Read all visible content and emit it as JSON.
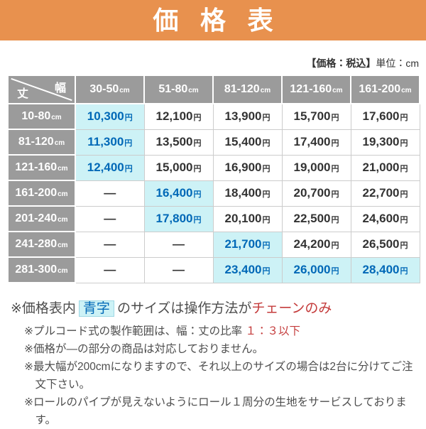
{
  "title": "価格表",
  "meta": {
    "tax_note": "【価格：税込】",
    "unit_note": "単位：cm"
  },
  "colors": {
    "banner": "#E8914E",
    "header_bg": "#9B9B9B",
    "cell_border": "#CCCCCC",
    "highlight_bg": "#CDF2F6",
    "highlight_text": "#0068B7",
    "emphasis_red": "#C43B3B",
    "price_text": "#333333",
    "note_text": "#4D4D4D"
  },
  "table": {
    "corner": {
      "width_label": "幅",
      "height_label": "丈"
    },
    "dash": "—",
    "price_unit": "円",
    "columns": [
      {
        "range": "30-50",
        "unit": "cm"
      },
      {
        "range": "51-80",
        "unit": "cm"
      },
      {
        "range": "81-120",
        "unit": "cm"
      },
      {
        "range": "121-160",
        "unit": "cm"
      },
      {
        "range": "161-200",
        "unit": "cm"
      }
    ],
    "row_headers": [
      {
        "range": "10-80",
        "unit": "cm"
      },
      {
        "range": "81-120",
        "unit": "cm"
      },
      {
        "range": "121-160",
        "unit": "cm"
      },
      {
        "range": "161-200",
        "unit": "cm"
      },
      {
        "range": "201-240",
        "unit": "cm"
      },
      {
        "range": "241-280",
        "unit": "cm"
      },
      {
        "range": "281-300",
        "unit": "cm"
      }
    ],
    "rows": [
      [
        {
          "value": "10,300",
          "highlight": true
        },
        {
          "value": "12,100",
          "highlight": false
        },
        {
          "value": "13,900",
          "highlight": false
        },
        {
          "value": "15,700",
          "highlight": false
        },
        {
          "value": "17,600",
          "highlight": false
        }
      ],
      [
        {
          "value": "11,300",
          "highlight": true
        },
        {
          "value": "13,500",
          "highlight": false
        },
        {
          "value": "15,400",
          "highlight": false
        },
        {
          "value": "17,400",
          "highlight": false
        },
        {
          "value": "19,300",
          "highlight": false
        }
      ],
      [
        {
          "value": "12,400",
          "highlight": true
        },
        {
          "value": "15,000",
          "highlight": false
        },
        {
          "value": "16,900",
          "highlight": false
        },
        {
          "value": "19,000",
          "highlight": false
        },
        {
          "value": "21,000",
          "highlight": false
        }
      ],
      [
        {
          "dash": true
        },
        {
          "value": "16,400",
          "highlight": true
        },
        {
          "value": "18,400",
          "highlight": false
        },
        {
          "value": "20,700",
          "highlight": false
        },
        {
          "value": "22,700",
          "highlight": false
        }
      ],
      [
        {
          "dash": true
        },
        {
          "value": "17,800",
          "highlight": true
        },
        {
          "value": "20,100",
          "highlight": false
        },
        {
          "value": "22,500",
          "highlight": false
        },
        {
          "value": "24,600",
          "highlight": false
        }
      ],
      [
        {
          "dash": true
        },
        {
          "dash": true
        },
        {
          "value": "21,700",
          "highlight": true
        },
        {
          "value": "24,200",
          "highlight": false
        },
        {
          "value": "26,500",
          "highlight": false
        }
      ],
      [
        {
          "dash": true
        },
        {
          "dash": true
        },
        {
          "value": "23,400",
          "highlight": true
        },
        {
          "value": "26,000",
          "highlight": true
        },
        {
          "value": "28,400",
          "highlight": true
        }
      ]
    ]
  },
  "notes": [
    {
      "size": "large",
      "segments": [
        {
          "text": "※価格表内"
        },
        {
          "text": "青字",
          "style": "highlight"
        },
        {
          "text": "のサイズは操作方法が"
        },
        {
          "text": "チェーンのみ",
          "style": "red"
        }
      ]
    },
    {
      "size": "small",
      "segments": [
        {
          "text": "※プルコード式の製作範囲は、幅：丈の比率 "
        },
        {
          "text": "１：３以下",
          "style": "red"
        }
      ]
    },
    {
      "size": "small",
      "segments": [
        {
          "text": "※価格が―の部分の商品は対応しておりません。"
        }
      ]
    },
    {
      "size": "small",
      "segments": [
        {
          "text": "※最大幅が200cmになりますので、それ以上のサイズの場合は2台に分けてご注文下さい。"
        }
      ]
    },
    {
      "size": "small",
      "segments": [
        {
          "text": "※ロールのパイプが見えないようにロール１周分の生地をサービスしております。"
        }
      ]
    }
  ]
}
